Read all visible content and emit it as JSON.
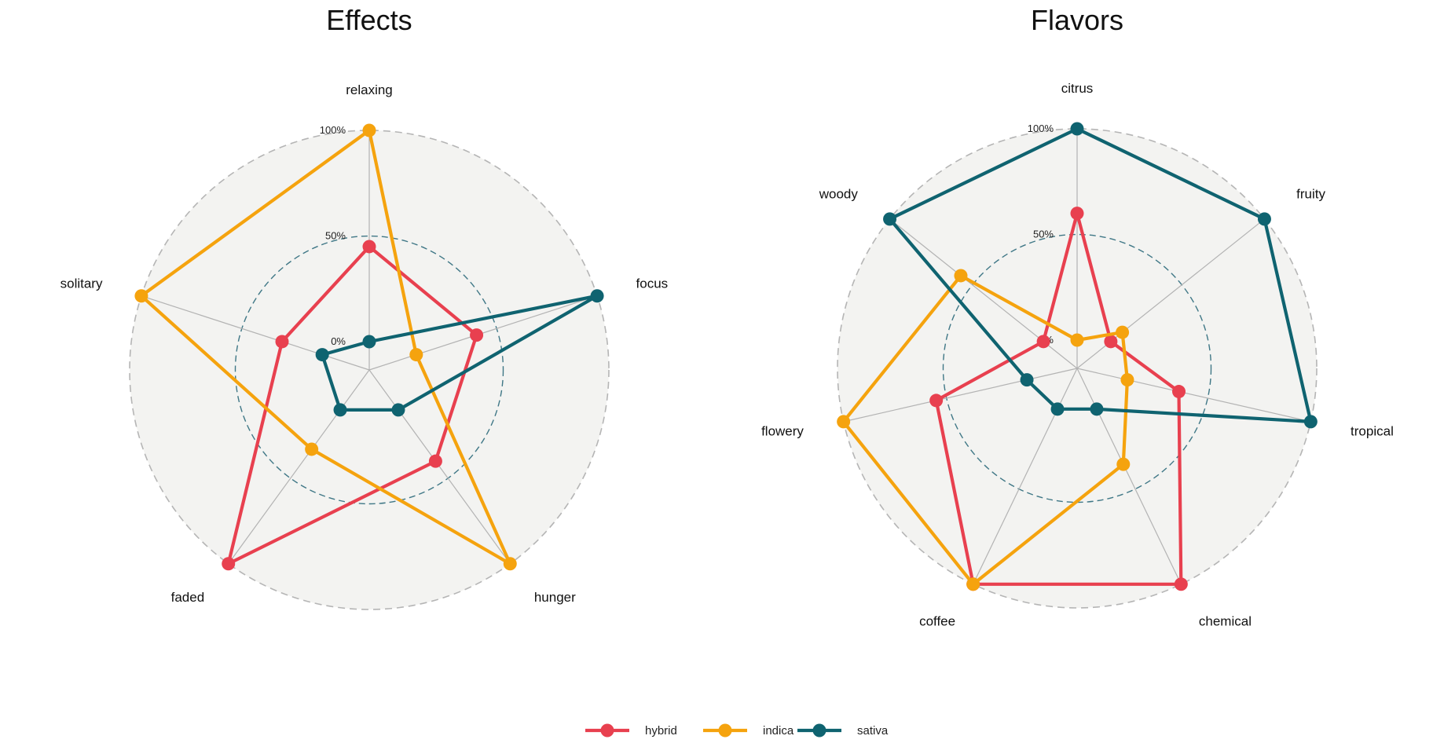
{
  "chart_data": [
    {
      "type": "radar",
      "title": "Effects",
      "axes": [
        "relaxing",
        "focus",
        "hunger",
        "faded",
        "solitary"
      ],
      "range": [
        0,
        100
      ],
      "gridlines": [
        {
          "value": 0,
          "label": "0%"
        },
        {
          "value": 50,
          "label": "50%"
        },
        {
          "value": 100,
          "label": "100%"
        }
      ],
      "series": [
        {
          "name": "hybrid",
          "values": [
            45,
            40,
            40,
            100,
            30
          ]
        },
        {
          "name": "indica",
          "values": [
            100,
            10,
            100,
            33,
            100
          ]
        },
        {
          "name": "sativa",
          "values": [
            0,
            100,
            10,
            10,
            10
          ]
        }
      ]
    },
    {
      "type": "radar",
      "title": "Flavors",
      "axes": [
        "citrus",
        "fruity",
        "tropical",
        "chemical",
        "coffee",
        "flowery",
        "woody"
      ],
      "range": [
        0,
        100
      ],
      "gridlines": [
        {
          "value": 0,
          "label": "0%"
        },
        {
          "value": 50,
          "label": "50%"
        },
        {
          "value": 100,
          "label": "100%"
        }
      ],
      "series": [
        {
          "name": "hybrid",
          "values": [
            60,
            7,
            36,
            100,
            100,
            55,
            7
          ]
        },
        {
          "name": "indica",
          "values": [
            0,
            14,
            11,
            37,
            100,
            100,
            57
          ]
        },
        {
          "name": "sativa",
          "values": [
            100,
            100,
            100,
            8,
            8,
            11,
            100
          ]
        }
      ]
    }
  ],
  "legend": {
    "placement": "bottom",
    "items": [
      {
        "name": "hybrid",
        "color": "#e8404f"
      },
      {
        "name": "indica",
        "color": "#f5a30e"
      },
      {
        "name": "sativa",
        "color": "#0f6370"
      }
    ]
  },
  "colors": {
    "panel_fill": "#f3f3f1",
    "outer_ring": "#b5b5b5",
    "mid_ring": "#3f7786",
    "spoke": "#b3b3b3"
  }
}
